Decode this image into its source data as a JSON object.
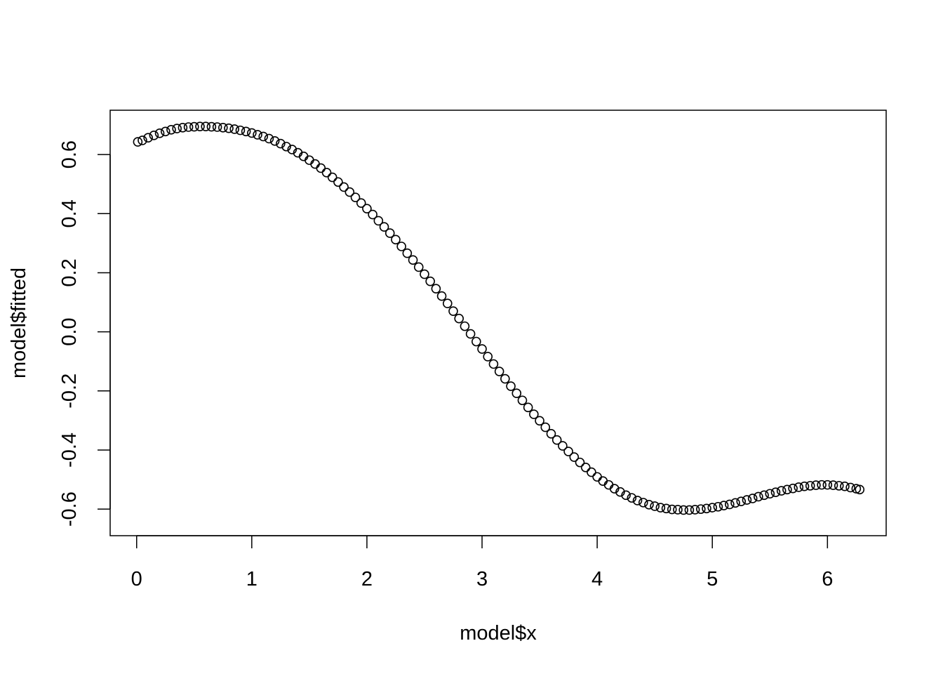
{
  "chart_data": {
    "type": "scatter",
    "title": "",
    "xlabel": "model$x",
    "ylabel": "model$fitted",
    "xlim": [
      -0.23,
      6.51
    ],
    "ylim": [
      -0.69,
      0.75
    ],
    "x_ticks": [
      0,
      1,
      2,
      3,
      4,
      5,
      6
    ],
    "x_tick_labels": [
      "0",
      "1",
      "2",
      "3",
      "4",
      "5",
      "6"
    ],
    "y_ticks": [
      -0.6,
      -0.4,
      -0.2,
      0.0,
      0.2,
      0.4,
      0.6
    ],
    "y_tick_labels": [
      "-0.6",
      "-0.4",
      "-0.2",
      "0.0",
      "0.2",
      "0.4",
      "0.6"
    ],
    "grid": false,
    "legend": "none",
    "marker": "open-circle",
    "color": "#000000",
    "series": [
      {
        "x": [
          0.01,
          0.05,
          0.1,
          0.15,
          0.2,
          0.25,
          0.3,
          0.35,
          0.4,
          0.45,
          0.5,
          0.55,
          0.6,
          0.65,
          0.7,
          0.75,
          0.8,
          0.85,
          0.9,
          0.95,
          1.0,
          1.05,
          1.1,
          1.15,
          1.2,
          1.25,
          1.3,
          1.35,
          1.4,
          1.45,
          1.5,
          1.55,
          1.6,
          1.65,
          1.7,
          1.75,
          1.8,
          1.85,
          1.9,
          1.95,
          2.0,
          2.05,
          2.1,
          2.15,
          2.2,
          2.25,
          2.3,
          2.35,
          2.4,
          2.45,
          2.5,
          2.55,
          2.6,
          2.65,
          2.7,
          2.75,
          2.8,
          2.85,
          2.9,
          2.95,
          3.0,
          3.05,
          3.1,
          3.15,
          3.2,
          3.25,
          3.3,
          3.35,
          3.4,
          3.45,
          3.5,
          3.55,
          3.6,
          3.65,
          3.7,
          3.75,
          3.8,
          3.85,
          3.9,
          3.95,
          4.0,
          4.05,
          4.1,
          4.15,
          4.2,
          4.25,
          4.3,
          4.35,
          4.4,
          4.45,
          4.5,
          4.55,
          4.6,
          4.65,
          4.7,
          4.75,
          4.8,
          4.85,
          4.9,
          4.95,
          5.0,
          5.05,
          5.1,
          5.15,
          5.2,
          5.25,
          5.3,
          5.35,
          5.4,
          5.45,
          5.5,
          5.55,
          5.6,
          5.65,
          5.7,
          5.75,
          5.8,
          5.85,
          5.9,
          5.95,
          6.0,
          6.05,
          6.1,
          6.15,
          6.2,
          6.25,
          6.28
        ],
        "y": [
          0.643,
          0.648,
          0.657,
          0.665,
          0.672,
          0.678,
          0.684,
          0.688,
          0.691,
          0.693,
          0.694,
          0.695,
          0.695,
          0.694,
          0.693,
          0.691,
          0.689,
          0.686,
          0.682,
          0.678,
          0.673,
          0.667,
          0.661,
          0.654,
          0.646,
          0.637,
          0.627,
          0.617,
          0.606,
          0.594,
          0.581,
          0.568,
          0.554,
          0.539,
          0.523,
          0.507,
          0.49,
          0.473,
          0.455,
          0.436,
          0.417,
          0.397,
          0.376,
          0.355,
          0.334,
          0.312,
          0.289,
          0.266,
          0.243,
          0.219,
          0.195,
          0.171,
          0.146,
          0.121,
          0.096,
          0.07,
          0.045,
          0.019,
          -0.007,
          -0.033,
          -0.058,
          -0.084,
          -0.109,
          -0.134,
          -0.159,
          -0.184,
          -0.208,
          -0.232,
          -0.256,
          -0.279,
          -0.301,
          -0.323,
          -0.345,
          -0.366,
          -0.386,
          -0.405,
          -0.424,
          -0.442,
          -0.459,
          -0.475,
          -0.491,
          -0.505,
          -0.518,
          -0.531,
          -0.542,
          -0.553,
          -0.562,
          -0.571,
          -0.578,
          -0.585,
          -0.59,
          -0.595,
          -0.598,
          -0.601,
          -0.602,
          -0.603,
          -0.603,
          -0.602,
          -0.6,
          -0.598,
          -0.595,
          -0.592,
          -0.588,
          -0.584,
          -0.579,
          -0.574,
          -0.569,
          -0.564,
          -0.558,
          -0.553,
          -0.548,
          -0.543,
          -0.538,
          -0.534,
          -0.53,
          -0.526,
          -0.523,
          -0.521,
          -0.519,
          -0.518,
          -0.518,
          -0.519,
          -0.521,
          -0.523,
          -0.527,
          -0.531,
          -0.534
        ]
      }
    ]
  }
}
